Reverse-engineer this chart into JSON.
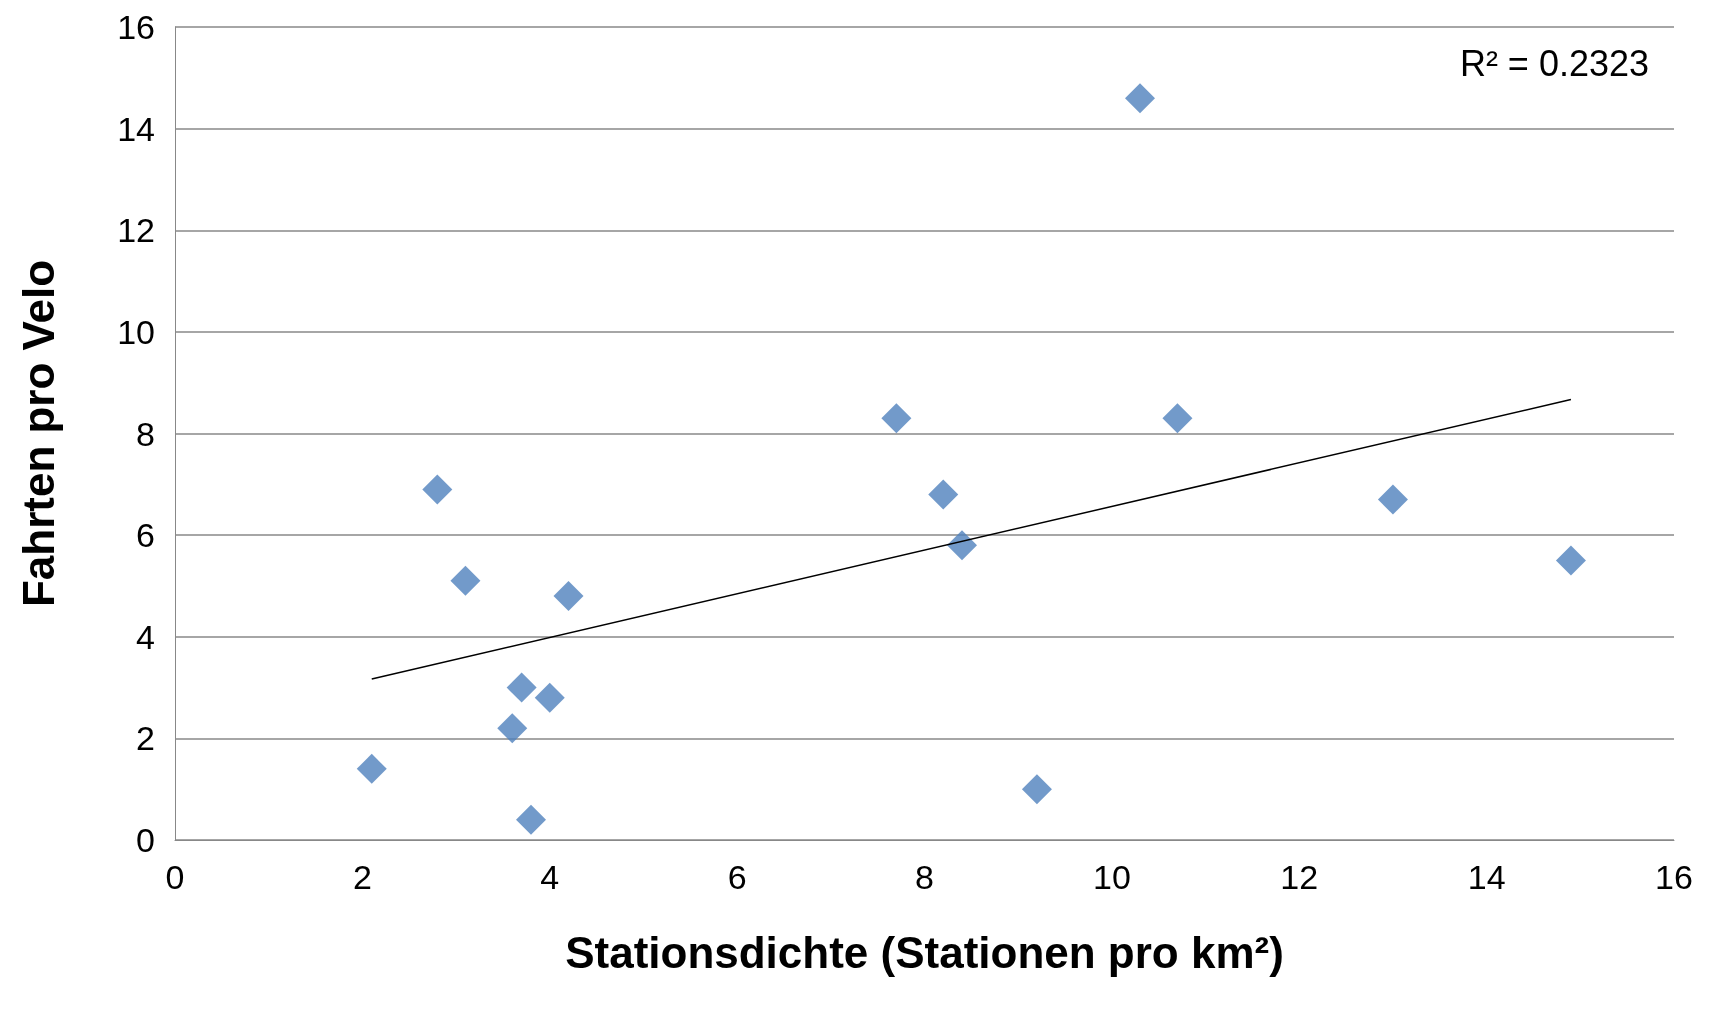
{
  "chart_data": {
    "type": "scatter",
    "xlabel": "Stationsdichte (Stationen pro km²)",
    "ylabel": "Fahrten pro Velo",
    "annotations": [
      "R² = 0.2323"
    ],
    "xlim": [
      0,
      16
    ],
    "xticks": [
      0,
      2,
      4,
      6,
      8,
      10,
      12,
      14,
      16
    ],
    "ylim": [
      0,
      16
    ],
    "yticks": [
      0,
      2,
      4,
      6,
      8,
      10,
      12,
      14,
      16
    ],
    "grid": "y",
    "marker": "diamond",
    "series": [
      {
        "color": "#4f81bd",
        "x": [
          2.1,
          2.8,
          3.1,
          4.2,
          3.7,
          4.0,
          3.6,
          3.8,
          7.7,
          8.2,
          8.4,
          9.2,
          10.3,
          10.7,
          13.0,
          14.9
        ],
        "values": [
          1.4,
          6.9,
          5.1,
          4.8,
          3.0,
          2.8,
          2.2,
          0.4,
          8.3,
          6.8,
          5.8,
          1.0,
          14.6,
          8.3,
          6.7,
          5.5
        ]
      },
      {
        "type": "line",
        "color": "#000000",
        "marker": "none",
        "x": [
          2.1,
          14.9
        ],
        "values": [
          3.17,
          8.67
        ]
      }
    ]
  }
}
